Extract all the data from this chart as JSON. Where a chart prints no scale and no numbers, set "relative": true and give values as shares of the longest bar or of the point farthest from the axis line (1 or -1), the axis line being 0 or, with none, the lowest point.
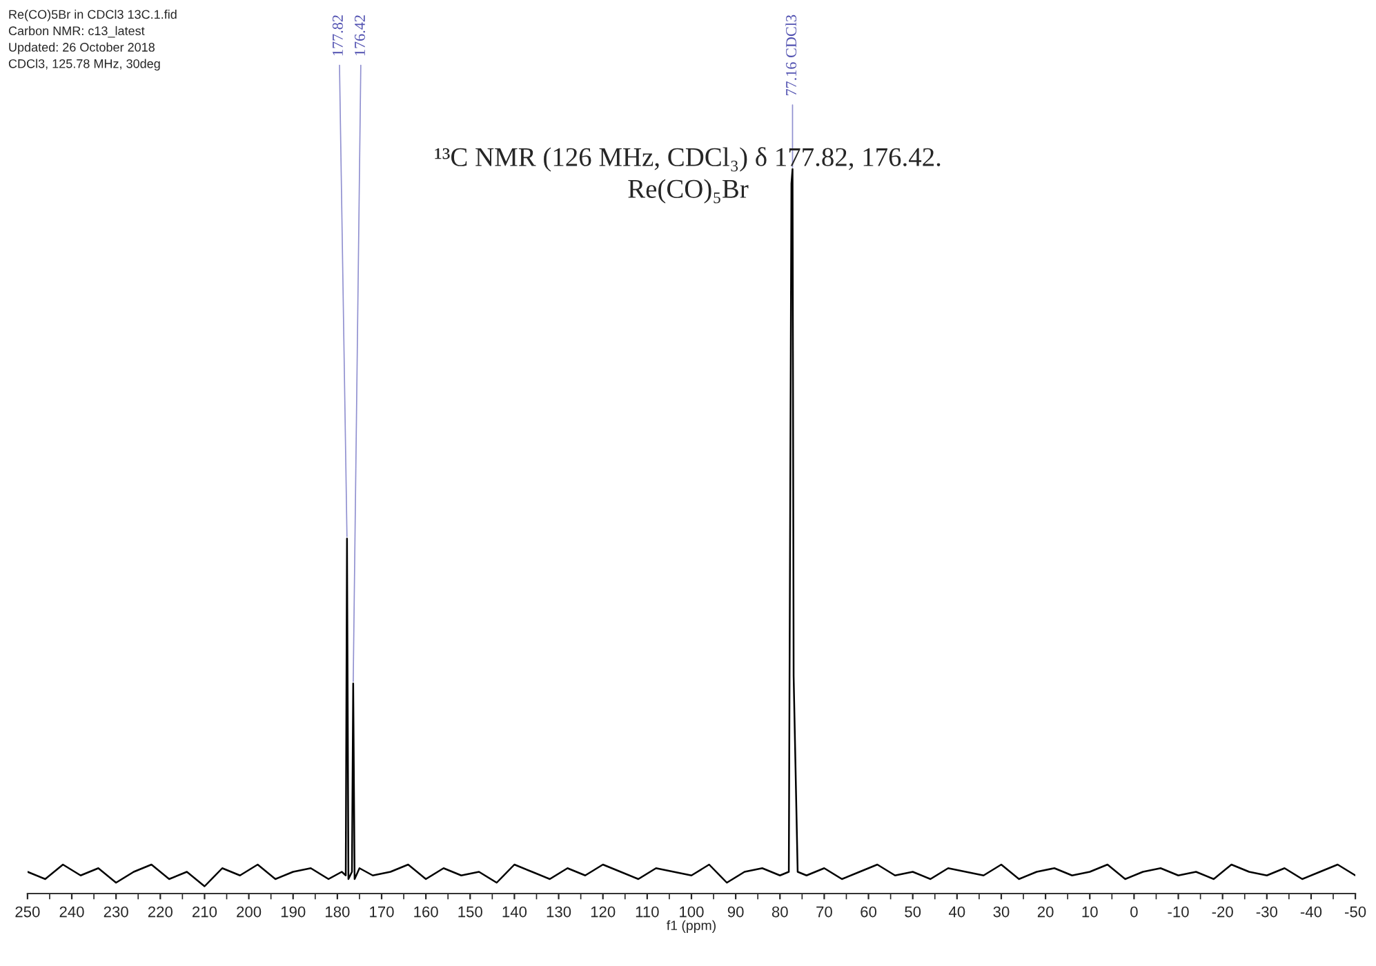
{
  "chart_data": {
    "type": "line",
    "relative": true,
    "title": "¹³C NMR (126 MHz, CDCl₃) δ 177.82, 176.42.",
    "subtitle": "Re(CO)₅Br",
    "xlabel": "f1 (ppm)",
    "x": [
      250,
      246,
      242,
      238,
      234,
      230,
      226,
      222,
      218,
      214,
      210,
      206,
      202,
      198,
      194,
      190,
      186,
      182,
      179,
      178.1,
      177.82,
      177.5,
      176.7,
      176.42,
      176.1,
      175,
      172,
      168,
      164,
      160,
      156,
      152,
      148,
      144,
      140,
      136,
      132,
      128,
      124,
      120,
      116,
      112,
      108,
      104,
      100,
      96,
      92,
      88,
      84,
      80,
      78,
      77.41,
      77.16,
      76.91,
      76,
      74,
      70,
      66,
      62,
      58,
      54,
      50,
      46,
      42,
      38,
      34,
      30,
      26,
      22,
      18,
      14,
      10,
      6,
      2,
      -2,
      -6,
      -10,
      -14,
      -18,
      -22,
      -26,
      -30,
      -34,
      -38,
      -42,
      -46,
      -50
    ],
    "series": [
      {
        "color": "#000000",
        "values": [
          0.03,
          0.02,
          0.04,
          0.025,
          0.035,
          0.015,
          0.03,
          0.04,
          0.02,
          0.03,
          0.01,
          0.035,
          0.025,
          0.04,
          0.02,
          0.03,
          0.035,
          0.02,
          0.03,
          0.025,
          0.49,
          0.02,
          0.03,
          0.29,
          0.02,
          0.035,
          0.025,
          0.03,
          0.04,
          0.02,
          0.035,
          0.025,
          0.03,
          0.015,
          0.04,
          0.03,
          0.02,
          0.035,
          0.025,
          0.04,
          0.03,
          0.02,
          0.035,
          0.03,
          0.025,
          0.04,
          0.015,
          0.03,
          0.035,
          0.025,
          0.03,
          0.98,
          1.0,
          0.3,
          0.03,
          0.025,
          0.035,
          0.02,
          0.03,
          0.04,
          0.025,
          0.03,
          0.02,
          0.035,
          0.03,
          0.025,
          0.04,
          0.02,
          0.03,
          0.035,
          0.025,
          0.03,
          0.04,
          0.02,
          0.03,
          0.035,
          0.025,
          0.03,
          0.02,
          0.04,
          0.03,
          0.025,
          0.035,
          0.02,
          0.03,
          0.04,
          0.025
        ]
      }
    ],
    "xlim": [
      250,
      -50
    ],
    "xticks": [
      250,
      240,
      230,
      220,
      210,
      200,
      190,
      180,
      170,
      160,
      150,
      140,
      130,
      120,
      110,
      100,
      90,
      80,
      70,
      60,
      50,
      40,
      30,
      20,
      10,
      0,
      -10,
      -20,
      -30,
      -40,
      -50
    ],
    "tick_labels": "x",
    "grid": false,
    "annotations": [
      "Re(CO)5Br in CDCl3 13C.1.fid",
      "Carbon NMR: c13_latest",
      "Updated: 26 October 2018",
      "CDCl3, 125.78 MHz, 30deg",
      {
        "text": "177.82",
        "x": 177.82,
        "y": 0.49
      },
      {
        "text": "176.42",
        "x": 176.42,
        "y": 0.29
      },
      {
        "text": "77.16 CDCl3",
        "x": 77.16,
        "y": 1.0
      }
    ]
  }
}
